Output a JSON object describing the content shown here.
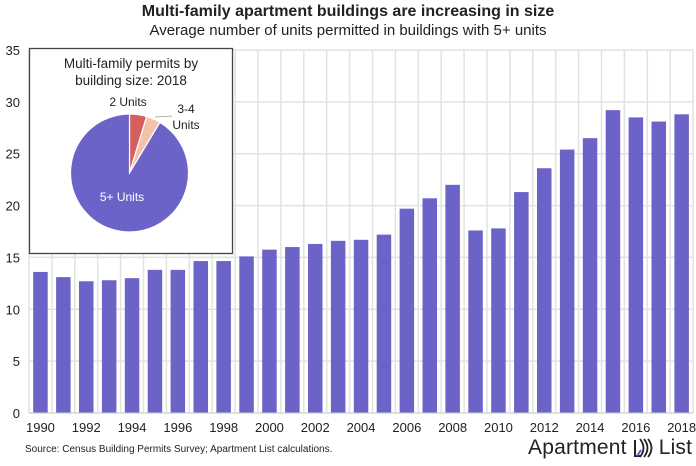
{
  "chart_data": [
    {
      "type": "bar",
      "title": "Multi-family apartment buildings are increasing in size",
      "subtitle": "Average number of units permitted in buildings with 5+ units",
      "categories": [
        1990,
        1991,
        1992,
        1993,
        1994,
        1995,
        1996,
        1997,
        1998,
        1999,
        2000,
        2001,
        2002,
        2003,
        2004,
        2005,
        2006,
        2007,
        2008,
        2009,
        2010,
        2011,
        2012,
        2013,
        2014,
        2015,
        2016,
        2017,
        2018
      ],
      "x_tick_labels": [
        "1990",
        "1992",
        "1994",
        "1996",
        "1998",
        "2000",
        "2002",
        "2004",
        "2006",
        "2008",
        "2010",
        "2012",
        "2014",
        "2016",
        "2018"
      ],
      "values": [
        13.6,
        13.1,
        12.7,
        12.8,
        13.0,
        13.8,
        13.8,
        14.65,
        14.65,
        15.1,
        15.75,
        16.0,
        16.3,
        16.6,
        16.7,
        17.2,
        19.7,
        20.7,
        22.0,
        17.6,
        17.8,
        21.3,
        23.6,
        25.4,
        26.5,
        29.2,
        28.5,
        28.1,
        28.8
      ],
      "ylim": [
        0,
        35
      ],
      "y_ticks": [
        "0",
        "5",
        "10",
        "15",
        "20",
        "25",
        "30",
        "35"
      ],
      "grid": true,
      "color": "#6c63c9"
    },
    {
      "type": "pie",
      "title": "Multi-family permits by building size: 2018",
      "slices": [
        {
          "label": "2 Units",
          "value": 4.7,
          "color": "#d4605e"
        },
        {
          "label": "3-4 Units",
          "value": 3.9,
          "color": "#f4c1ab"
        },
        {
          "label": "5+ Units",
          "value": 91.4,
          "color": "#6c63c9"
        }
      ]
    }
  ],
  "source": "Source: Census Building Permits Survey; Apartment List calculations.",
  "logo": {
    "left": "Apartment",
    "right": "List"
  }
}
